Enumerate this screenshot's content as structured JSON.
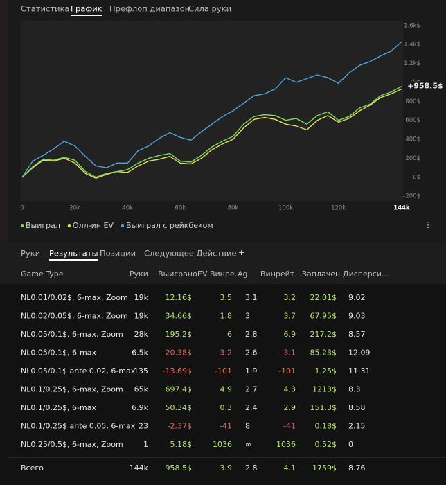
{
  "tabs": {
    "items": [
      "Статистика",
      "График",
      "Префлоп диапазон",
      "Сила руки"
    ],
    "active": 1
  },
  "chart_data": {
    "type": "line",
    "x": [
      0,
      4000,
      8000,
      12000,
      16000,
      20000,
      24000,
      28000,
      32000,
      36000,
      40000,
      44000,
      48000,
      52000,
      56000,
      60000,
      64000,
      68000,
      72000,
      76000,
      80000,
      84000,
      88000,
      92000,
      96000,
      100000,
      104000,
      108000,
      112000,
      116000,
      120000,
      124000,
      128000,
      132000,
      136000,
      140000,
      144000
    ],
    "series": [
      {
        "name": "Выиграл",
        "color": "#7edc5c",
        "values": [
          0,
          110,
          190,
          180,
          210,
          180,
          60,
          0,
          40,
          60,
          80,
          150,
          200,
          230,
          250,
          170,
          160,
          230,
          320,
          380,
          430,
          560,
          640,
          660,
          650,
          600,
          620,
          560,
          650,
          690,
          600,
          640,
          730,
          770,
          860,
          900,
          958.5
        ]
      },
      {
        "name": "Олл-ин EV",
        "color": "#e6df5a",
        "values": [
          0,
          100,
          180,
          170,
          200,
          150,
          40,
          -10,
          30,
          60,
          50,
          120,
          170,
          190,
          220,
          150,
          140,
          200,
          290,
          350,
          400,
          520,
          610,
          630,
          610,
          560,
          540,
          500,
          600,
          650,
          580,
          620,
          700,
          760,
          840,
          880,
          930
        ]
      },
      {
        "name": "Выиграл с рейкбеком",
        "color": "#4fa6dc",
        "values": [
          0,
          170,
          230,
          300,
          380,
          330,
          220,
          120,
          100,
          150,
          150,
          280,
          330,
          410,
          470,
          420,
          390,
          480,
          560,
          640,
          700,
          780,
          860,
          880,
          930,
          1050,
          1000,
          1040,
          1080,
          1050,
          990,
          1100,
          1180,
          1220,
          1280,
          1330,
          1430
        ]
      }
    ],
    "xlim": [
      0,
      144000
    ],
    "xticks": [
      0,
      {
        "value": 20000,
        "label": "20k"
      },
      {
        "value": 40000,
        "label": "40k"
      },
      {
        "value": 60000,
        "label": "60k"
      },
      {
        "value": 80000,
        "label": "80k"
      },
      {
        "value": 100000,
        "label": "100k"
      },
      {
        "value": 120000,
        "label": "120k"
      },
      {
        "value": 144000,
        "label": "144k"
      }
    ],
    "ylim": [
      -250,
      1650
    ],
    "yticks": [
      {
        "value": -200,
        "label": "-200$"
      },
      {
        "value": 0,
        "label": "0$"
      },
      {
        "value": 200,
        "label": "200$"
      },
      {
        "value": 400,
        "label": "400$"
      },
      {
        "value": 600,
        "label": "600$"
      },
      {
        "value": 800,
        "label": "800$"
      },
      {
        "value": 1000,
        "label": "1k$"
      },
      {
        "value": 1200,
        "label": "1.2k$"
      },
      {
        "value": 1400,
        "label": "1.4k$"
      },
      {
        "value": 1600,
        "label": "1.6k$"
      }
    ],
    "annotation": "+958.5$",
    "grid": false
  },
  "subtabs": {
    "items": [
      "Руки",
      "Результаты",
      "Позиции",
      "Следующее Действие"
    ],
    "active": 1
  },
  "table": {
    "headers": [
      "Game Type",
      "Руки",
      "Выиграно",
      "EV Винре...",
      "Ag.",
      "Винрейт ...",
      "Заплачен...",
      "Дисперси..."
    ],
    "rows": [
      [
        "NL0.01/0.02$, 6-max, Zoom",
        "19k",
        "12.16$",
        "3.5",
        "3.1",
        "3.2",
        "22.01$",
        "9.02"
      ],
      [
        "NL0.02/0.05$, 6-max, Zoom",
        "19k",
        "34.66$",
        "1.8",
        "3",
        "3.7",
        "67.95$",
        "9.03"
      ],
      [
        "NL0.05/0.1$, 6-max, Zoom",
        "28k",
        "195.2$",
        "6",
        "2.8",
        "6.9",
        "217.2$",
        "8.57"
      ],
      [
        "NL0.05/0.1$, 6-max",
        "6.5k",
        "-20.38$",
        "-3.2",
        "2.6",
        "-3.1",
        "85.23$",
        "12.09"
      ],
      [
        "NL0.05/0.1$ ante 0.02, 6-max",
        "135",
        "-13.69$",
        "-101",
        "1.9",
        "-101",
        "1.25$",
        "11.31"
      ],
      [
        "NL0.1/0.25$, 6-max, Zoom",
        "65k",
        "697.4$",
        "4.9",
        "2.7",
        "4.3",
        "1213$",
        "8.3"
      ],
      [
        "NL0.1/0.25$, 6-max",
        "6.9k",
        "50.34$",
        "0.3",
        "2.4",
        "2.9",
        "151.3$",
        "8.58"
      ],
      [
        "NL0.1/0.25$ ante 0.05, 6-max",
        "23",
        "-2.37$",
        "-41",
        "8",
        "-41",
        "0.18$",
        "2.15"
      ],
      [
        "NL0.25/0.5$, 6-max, Zoom",
        "1",
        "5.18$",
        "1036",
        "∞",
        "1036",
        "0.52$",
        "0"
      ]
    ],
    "total": [
      "Всего",
      "144k",
      "958.5$",
      "3.9",
      "2.8",
      "4.1",
      "1759$",
      "8.76"
    ]
  }
}
